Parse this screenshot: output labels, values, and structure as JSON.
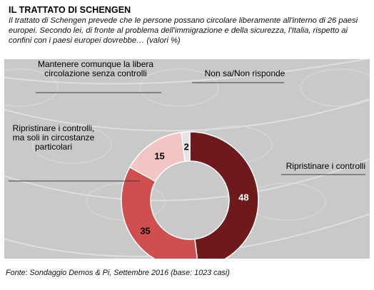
{
  "header": {
    "title": "IL TRATTATO  DI SCHENGEN",
    "subtitle": "Il trattato di Schengen prevede che le persone possano circolare liberamente all'interno di 26 paesi europei. Secondo lei, di fronte al problema dell'immigrazione e della sicurezza, l'Italia, rispetto ai confini con i paesi europei dovrebbe… (valori %)"
  },
  "footer": {
    "source": "Fonte: Sondaggio Demos & Pi, Settembre 2016 (base: 1023 casi)"
  },
  "chart_data": {
    "type": "pie",
    "donut": true,
    "categories": [
      "Ripristinare  i controlli",
      "Ripristinare  i controlli, ma soli in circostanze particolari",
      "Mantenere comunque la libera circolazione senza controlli",
      "Non sa/Non risponde"
    ],
    "values": [
      48,
      35,
      15,
      2
    ],
    "slice_labels": [
      [
        "Ripristinare  i controlli"
      ],
      [
        "Ripristinare  i controlli,",
        "ma soli in circostanze",
        "particolari"
      ],
      [
        "Mantenere  comunque  la libera",
        "circolazione  senza controlli"
      ],
      [
        "Non sa/Non risponde"
      ]
    ],
    "colors": [
      "#6e1a1c",
      "#cf4e4e",
      "#f3c4c4",
      "#e4e4e4"
    ],
    "value_label_colors": [
      "#ffffff",
      "#000000",
      "#000000",
      "#000000"
    ],
    "background_color": "#c9c9c9",
    "title": "",
    "xlabel": "",
    "ylabel": ""
  }
}
